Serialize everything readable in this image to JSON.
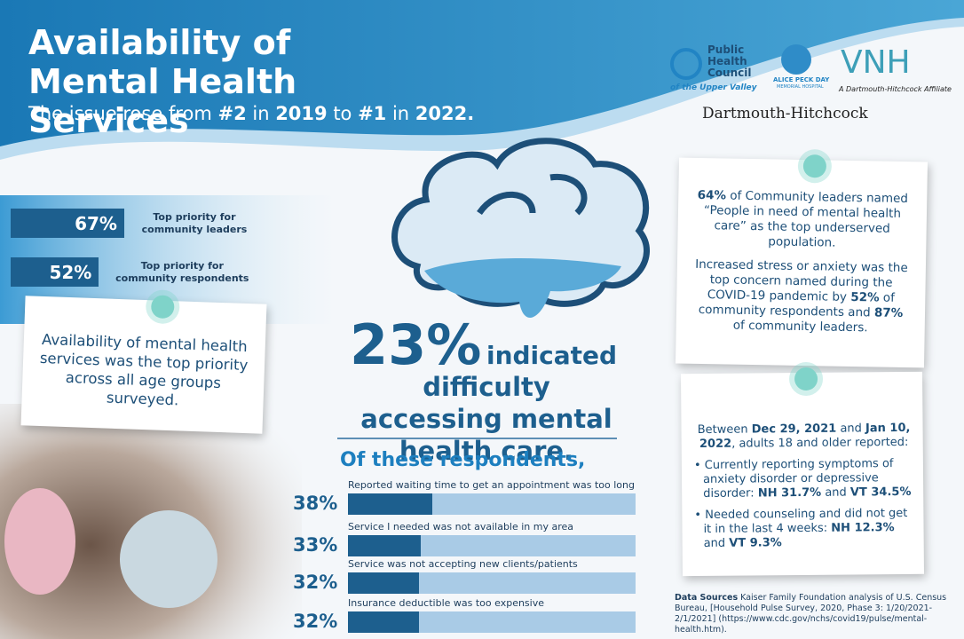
{
  "header": {
    "title": "Availability of Mental Health Services",
    "subtitle": [
      {
        "text": "The issue rose from "
      },
      {
        "text": "#2",
        "bold": true
      },
      {
        "text": " in "
      },
      {
        "text": "2019",
        "bold": true
      },
      {
        "text": " to "
      },
      {
        "text": "#1",
        "bold": true
      },
      {
        "text": " in "
      },
      {
        "text": "2022.",
        "bold": true
      }
    ]
  },
  "logos": {
    "phc": "Public Health Council",
    "phc_tagline": "of the Upper Valley",
    "apd": "ALICE PECK DAY",
    "apd_sub": "MEMORIAL HOSPITAL",
    "vnh": "VNH",
    "vnh_tagline": "A Dartmouth-Hitchcock Affiliate",
    "dh": "Dartmouth-Hitchcock"
  },
  "priorities": {
    "xlim": [
      0,
      100
    ],
    "values": [
      67,
      52
    ],
    "value_labels": [
      "67%",
      "52%"
    ],
    "labels": [
      "Top priority for community leaders",
      "Top priority for community respondents"
    ]
  },
  "age_note": "Availability of mental health services was the top priority across all age groups surveyed.",
  "headline": {
    "value_label": "23%",
    "lead": "indicated",
    "rest": "difficulty accessing mental health care."
  },
  "reasons": {
    "title": "Of these respondents,",
    "xlim": [
      0,
      130
    ],
    "values": [
      38,
      33,
      32,
      32
    ],
    "value_labels": [
      "38%",
      "33%",
      "32%",
      "32%"
    ],
    "labels": [
      "Reported waiting time to get an appointment was too long",
      "Service I needed was not available in my area",
      "Service was not accepting new clients/patients",
      "Insurance deductible was too expensive"
    ]
  },
  "leaders_card": {
    "paragraphs": [
      [
        {
          "text": "64%",
          "bold": true
        },
        {
          "text": " of Community leaders named “People in need of mental health care” as the top underserved population."
        }
      ],
      [
        {
          "text": "Increased stress or anxiety was the top concern named during the COVID-19 pandemic by "
        },
        {
          "text": "52%",
          "bold": true
        },
        {
          "text": " of community respondents and "
        },
        {
          "text": "87%",
          "bold": true
        },
        {
          "text": " of community leaders."
        }
      ]
    ]
  },
  "survey_card": {
    "intro": [
      {
        "text": "Between "
      },
      {
        "text": "Dec 29, 2021",
        "bold": true
      },
      {
        "text": " and "
      },
      {
        "text": "Jan 10, 2022",
        "bold": true
      },
      {
        "text": ", adults 18 and older reported:"
      }
    ],
    "bullets": [
      [
        {
          "text": "Currently reporting symptoms of anxiety disorder or depressive disorder: "
        },
        {
          "text": "NH 31.7%",
          "bold": true
        },
        {
          "text": " and "
        },
        {
          "text": "VT 34.5%",
          "bold": true
        }
      ],
      [
        {
          "text": "Needed counseling and did not get it in the last 4 weeks: "
        },
        {
          "text": "NH 12.3%",
          "bold": true
        },
        {
          "text": " and "
        },
        {
          "text": "VT 9.3%",
          "bold": true
        }
      ]
    ]
  },
  "sources": [
    {
      "text": "Data Sources",
      "bold": true
    },
    {
      "text": " Kaiser Family Foundation analysis of U.S. Census Bureau, [Household Pulse Survey, 2020, Phase 3: 1/20/2021-2/1/2021] (https://www.cdc.gov/nchs/covid19/pulse/mental-health.htm)."
    }
  ]
}
